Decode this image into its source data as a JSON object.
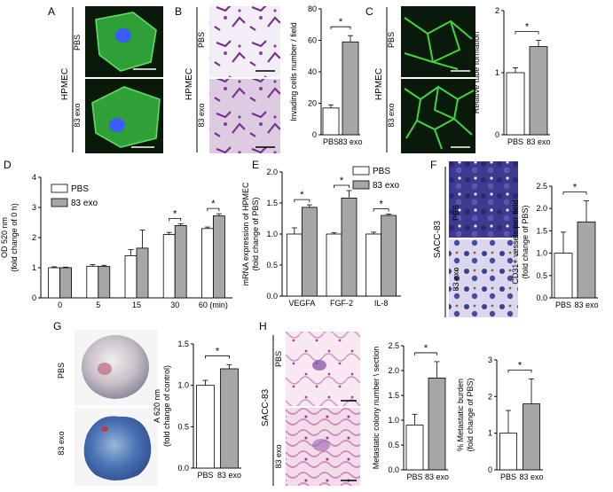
{
  "figure": {
    "panels": {
      "A": {
        "letter": "A",
        "row_label": "HPMEC",
        "labels": [
          "PBS",
          "83 exo"
        ]
      },
      "B": {
        "letter": "B",
        "row_label": "HPMEC",
        "labels": [
          "PBS",
          "83 exo"
        ]
      },
      "C": {
        "letter": "C",
        "row_label": "HPMEC",
        "labels": [
          "PBS",
          "83 exo"
        ]
      },
      "D": {
        "letter": "D"
      },
      "E": {
        "letter": "E"
      },
      "F": {
        "letter": "F",
        "row_label": "SACC-83",
        "labels": [
          "PBS",
          "83 exo"
        ]
      },
      "G": {
        "letter": "G",
        "labels": [
          "PBS",
          "83 exo"
        ]
      },
      "H": {
        "letter": "H",
        "row_label": "SACC-83",
        "labels": [
          "PBS",
          "83 exo"
        ]
      }
    },
    "colors": {
      "pbs_bar": "#ffffff",
      "exo_bar": "#a6a6a6",
      "fluor_bg": "#0a1a0a",
      "fluor_green": "#3fd63f",
      "nucleus_blue": "#3a5bff",
      "crystal_purple": "#7a2f8f",
      "he_pink": "#e7b7d6"
    }
  },
  "chart_data": [
    {
      "id": "B",
      "type": "bar",
      "categories": [
        "PBS",
        "83 exo"
      ],
      "values": [
        17,
        59
      ],
      "errors": [
        2,
        4
      ],
      "ylabel": "Invading cells number / field",
      "ylim": [
        0,
        80
      ],
      "yticks": [
        0,
        20,
        40,
        60,
        80
      ],
      "significance": "*"
    },
    {
      "id": "C",
      "type": "bar",
      "categories": [
        "PBS",
        "83 exo"
      ],
      "values": [
        1.0,
        1.42
      ],
      "errors": [
        0.08,
        0.1
      ],
      "ylabel": "Relative tube formation",
      "ylim": [
        0,
        2
      ],
      "yticks": [
        0,
        1,
        2
      ],
      "significance": "*"
    },
    {
      "id": "D",
      "type": "bar",
      "categories": [
        "0",
        "5",
        "15",
        "30",
        "60 (min)"
      ],
      "series": [
        {
          "name": "PBS",
          "values": [
            1.0,
            1.05,
            1.4,
            2.1,
            2.3
          ],
          "errors": [
            0.03,
            0.05,
            0.2,
            0.07,
            0.05
          ]
        },
        {
          "name": "83 exo",
          "values": [
            1.0,
            1.04,
            1.65,
            2.4,
            2.72
          ],
          "errors": [
            0.02,
            0.04,
            0.6,
            0.06,
            0.07
          ]
        }
      ],
      "ylabel": "OD 520  nm\n(fold change of 0 h)",
      "ylim": [
        0,
        4
      ],
      "yticks": [
        0,
        1,
        2,
        3,
        4
      ],
      "significance": [
        {
          "category": "30",
          "text": "*"
        },
        {
          "category": "60 (min)",
          "text": "*"
        }
      ],
      "legend": "top-left"
    },
    {
      "id": "E",
      "type": "bar",
      "categories": [
        "VEGFA",
        "FGF-2",
        "IL-8"
      ],
      "series": [
        {
          "name": "PBS",
          "values": [
            1.0,
            1.0,
            1.0
          ],
          "errors": [
            0.1,
            0.02,
            0.03
          ]
        },
        {
          "name": "83 exo",
          "values": [
            1.43,
            1.58,
            1.3
          ],
          "errors": [
            0.04,
            0.12,
            0.02
          ]
        }
      ],
      "ylabel": "mRNA expression of HPMEC\n(fold change of PBS)",
      "ylim": [
        0,
        2.0
      ],
      "yticks": [
        0,
        0.5,
        1.0,
        1.5,
        2.0
      ],
      "significance": [
        {
          "category": "VEGFA",
          "text": "*"
        },
        {
          "category": "FGF-2",
          "text": "*"
        },
        {
          "category": "IL-8",
          "text": "*"
        }
      ],
      "legend": "top-right"
    },
    {
      "id": "F",
      "type": "bar",
      "categories": [
        "PBS",
        "83 exo"
      ],
      "values": [
        1.0,
        1.7
      ],
      "errors": [
        0.47,
        0.47
      ],
      "ylabel": "CD31+ vessels per field\n(fold change of PBS)",
      "ylim": [
        0,
        2.5
      ],
      "yticks": [
        0,
        0.5,
        1.0,
        1.5,
        2.0,
        2.5
      ],
      "significance": "*"
    },
    {
      "id": "G",
      "type": "bar",
      "categories": [
        "PBS",
        "83 exo"
      ],
      "values": [
        1.0,
        1.2
      ],
      "errors": [
        0.06,
        0.05
      ],
      "ylabel": "A 620 nm\n(fold change of control)",
      "ylim": [
        0,
        1.5
      ],
      "yticks": [
        0,
        0.5,
        1.0,
        1.5
      ],
      "significance": "*"
    },
    {
      "id": "H1",
      "type": "bar",
      "categories": [
        "PBS",
        "83 exo"
      ],
      "values": [
        0.9,
        1.85
      ],
      "errors": [
        0.22,
        0.33
      ],
      "ylabel": "Metastatic colony number \\ section",
      "ylim": [
        0,
        2.5
      ],
      "yticks": [
        0,
        0.5,
        1.0,
        1.5,
        2.0,
        2.5
      ],
      "significance": "*"
    },
    {
      "id": "H2",
      "type": "bar",
      "categories": [
        "PBS",
        "83 exo"
      ],
      "values": [
        1.0,
        1.8
      ],
      "errors": [
        0.62,
        0.68
      ],
      "ylabel": "% Metastatic burden\n(fold change of PBS)",
      "ylim": [
        0,
        3
      ],
      "yticks": [
        0,
        1,
        2,
        3
      ],
      "significance": "*"
    }
  ]
}
